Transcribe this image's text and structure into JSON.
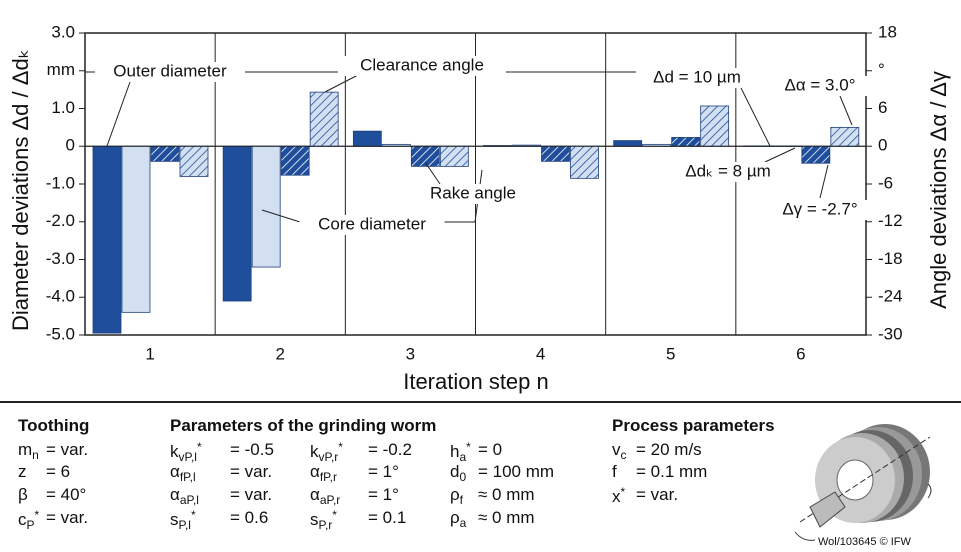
{
  "chart_data": {
    "type": "bar",
    "categories": [
      "1",
      "2",
      "3",
      "4",
      "5",
      "6"
    ],
    "x_label": "Iteration step n",
    "y_label": "Diameter deviations Δd / Δdₖ",
    "y2_label": "Angle deviations Δα / Δγ",
    "ylim": [
      -5,
      3
    ],
    "yticks": [
      {
        "value": 3,
        "label": "3.0"
      },
      {
        "value": 2,
        "label": "mm"
      },
      {
        "value": 1,
        "label": "1.0"
      },
      0,
      {
        "value": -1,
        "label": "-1.0"
      },
      {
        "value": -2,
        "label": "-2.0"
      },
      {
        "value": -3,
        "label": "-3.0"
      },
      {
        "value": -4,
        "label": "-4.0"
      },
      {
        "value": -5,
        "label": "-5.0"
      }
    ],
    "y2lim": [
      -30,
      18
    ],
    "y2ticks": [
      18,
      {
        "value": 12,
        "label": "°"
      },
      6,
      0,
      -6,
      -12,
      -18,
      -24,
      -30
    ],
    "series": [
      {
        "name": "Outer diameter",
        "color": "#1f4e9c",
        "pattern": "solid",
        "values": [
          -4.95,
          -4.1,
          0.4,
          0.02,
          0.15,
          0.01
        ]
      },
      {
        "name": "Core diameter",
        "color": "#d3e0f2",
        "pattern": "solid",
        "values": [
          -4.4,
          -3.2,
          0.05,
          0.03,
          0.05,
          0.008
        ]
      },
      {
        "name": "Rake angle",
        "color": "#1f4e9c",
        "pattern": "hatch",
        "axis": "y2",
        "values": [
          -2.4,
          -4.6,
          -3.2,
          -2.4,
          1.4,
          -2.7
        ]
      },
      {
        "name": "Clearance angle",
        "color": "#d3e0f2",
        "pattern": "hatch",
        "axis": "y2",
        "values": [
          -4.8,
          8.6,
          -3.2,
          -5.1,
          6.4,
          3.0
        ]
      }
    ],
    "annotations": [
      "Δd = 10 µm",
      "Δdₖ = 8 µm",
      "Δα = 3.0°",
      "Δγ = -2.7°"
    ]
  },
  "footer": {
    "toothing": {
      "title": "Toothing",
      "rows": [
        {
          "sym": "m",
          "sub": "n",
          "val": "= var."
        },
        {
          "sym": "z",
          "val": "= 6"
        },
        {
          "sym": "β",
          "val": "= 40°"
        },
        {
          "sym": "c",
          "sub": "P",
          "sup": "*",
          "val": "= var."
        }
      ]
    },
    "worm": {
      "title": "Parameters of the grinding worm",
      "columns": [
        [
          {
            "sym": "k",
            "sub": "vP,l",
            "sup": "*",
            "val": "= -0.5"
          },
          {
            "sym": "α",
            "sub": "fP,l",
            "val": "= var."
          },
          {
            "sym": "α",
            "sub": "aP,l",
            "val": "= var."
          },
          {
            "sym": "s",
            "sub": "P,l",
            "sup": "*",
            "val": "= 0.6"
          }
        ],
        [
          {
            "sym": "k",
            "sub": "vP,r",
            "sup": "*",
            "val": "= -0.2"
          },
          {
            "sym": "α",
            "sub": "fP,r",
            "val": "= 1°"
          },
          {
            "sym": "α",
            "sub": "aP,r",
            "val": "= 1°"
          },
          {
            "sym": "s",
            "sub": "P,r",
            "sup": "*",
            "val": "= 0.1"
          }
        ],
        [
          {
            "sym": "h",
            "sub": "a",
            "sup": "*",
            "val": "= 0"
          },
          {
            "sym": "d",
            "sub": "0",
            "val": "= 100 mm"
          },
          {
            "sym": "ρ",
            "sub": "f",
            "val": "≈ 0 mm"
          },
          {
            "sym": "ρ",
            "sub": "a",
            "val": "≈ 0 mm"
          }
        ]
      ]
    },
    "process": {
      "title": "Process parameters",
      "rows": [
        {
          "sym": "v",
          "sub": "c",
          "val": "= 20 m/s"
        },
        {
          "sym": "f",
          "val": "= 0.1 mm"
        },
        {
          "sym": "x",
          "sup": "*",
          "val": "= var."
        }
      ]
    },
    "credit": "Wol/103645 © IFW"
  }
}
